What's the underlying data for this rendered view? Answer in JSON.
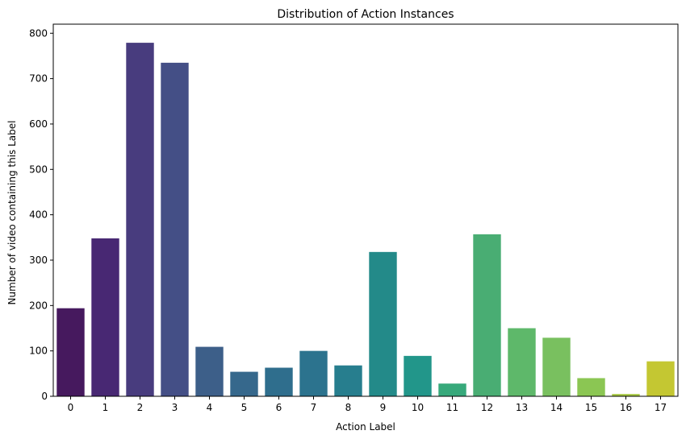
{
  "chart_data": {
    "type": "bar",
    "title": "Distribution of Action Instances",
    "xlabel": "Action Label",
    "ylabel": "Number of video containing this Label",
    "categories": [
      "0",
      "1",
      "2",
      "3",
      "4",
      "5",
      "6",
      "7",
      "8",
      "9",
      "10",
      "11",
      "12",
      "13",
      "14",
      "15",
      "16",
      "17"
    ],
    "values": [
      194,
      348,
      779,
      735,
      109,
      54,
      63,
      100,
      68,
      318,
      89,
      28,
      357,
      150,
      129,
      40,
      5,
      77
    ],
    "ylim": [
      0,
      820
    ],
    "yticks": [
      0,
      100,
      200,
      300,
      400,
      500,
      600,
      700,
      800
    ],
    "grid": false,
    "legend": "none",
    "colors": [
      "#46195e",
      "#482873",
      "#483c7e",
      "#444f86",
      "#3d5f89",
      "#36688c",
      "#2f6e8d",
      "#2c738e",
      "#277e8e",
      "#238a89",
      "#22968a",
      "#37a97b",
      "#49ad73",
      "#5eb86a",
      "#79c05f",
      "#8bc653",
      "#a7c942",
      "#c4c732"
    ]
  }
}
